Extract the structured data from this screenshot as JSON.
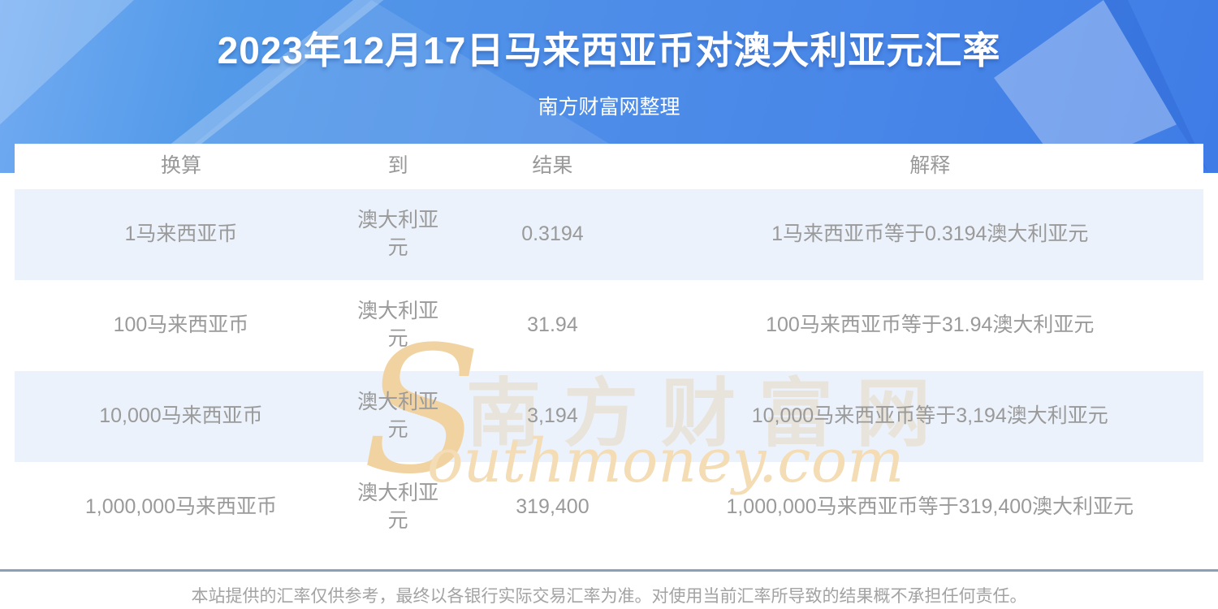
{
  "header": {
    "title": "2023年12月17日马来西亚币对澳大利亚元汇率",
    "subtitle": "南方财富网整理"
  },
  "table": {
    "columns": [
      "换算",
      "到",
      "结果",
      "解释"
    ],
    "rows": [
      {
        "convert": "1马来西亚币",
        "to": "澳大利亚元",
        "result": "0.3194",
        "explain": "1马来西亚币等于0.3194澳大利亚元"
      },
      {
        "convert": "100马来西亚币",
        "to": "澳大利亚元",
        "result": "31.94",
        "explain": "100马来西亚币等于31.94澳大利亚元"
      },
      {
        "convert": "10,000马来西亚币",
        "to": "澳大利亚元",
        "result": "3,194",
        "explain": "10,000马来西亚币等于3,194澳大利亚元"
      },
      {
        "convert": "1,000,000马来西亚币",
        "to": "澳大利亚元",
        "result": "319,400",
        "explain": "1,000,000马来西亚币等于319,400澳大利亚元"
      }
    ]
  },
  "watermark": {
    "s": "S",
    "cn": "南方财富网",
    "en": "outhmoney.com"
  },
  "footer": {
    "disclaimer": "本站提供的汇率仅供参考，最终以各银行实际交易汇率为准。对使用当前汇率所导致的结果概不承担任何责任。"
  },
  "colors": {
    "banner_blue": "#4a88e8",
    "row_alt_blue": "#ecf2fb",
    "divider_steel_blue": "#8aa0b8",
    "table_text_gray": "#9a9a9a",
    "watermark_tan": "#f1d3a2"
  }
}
